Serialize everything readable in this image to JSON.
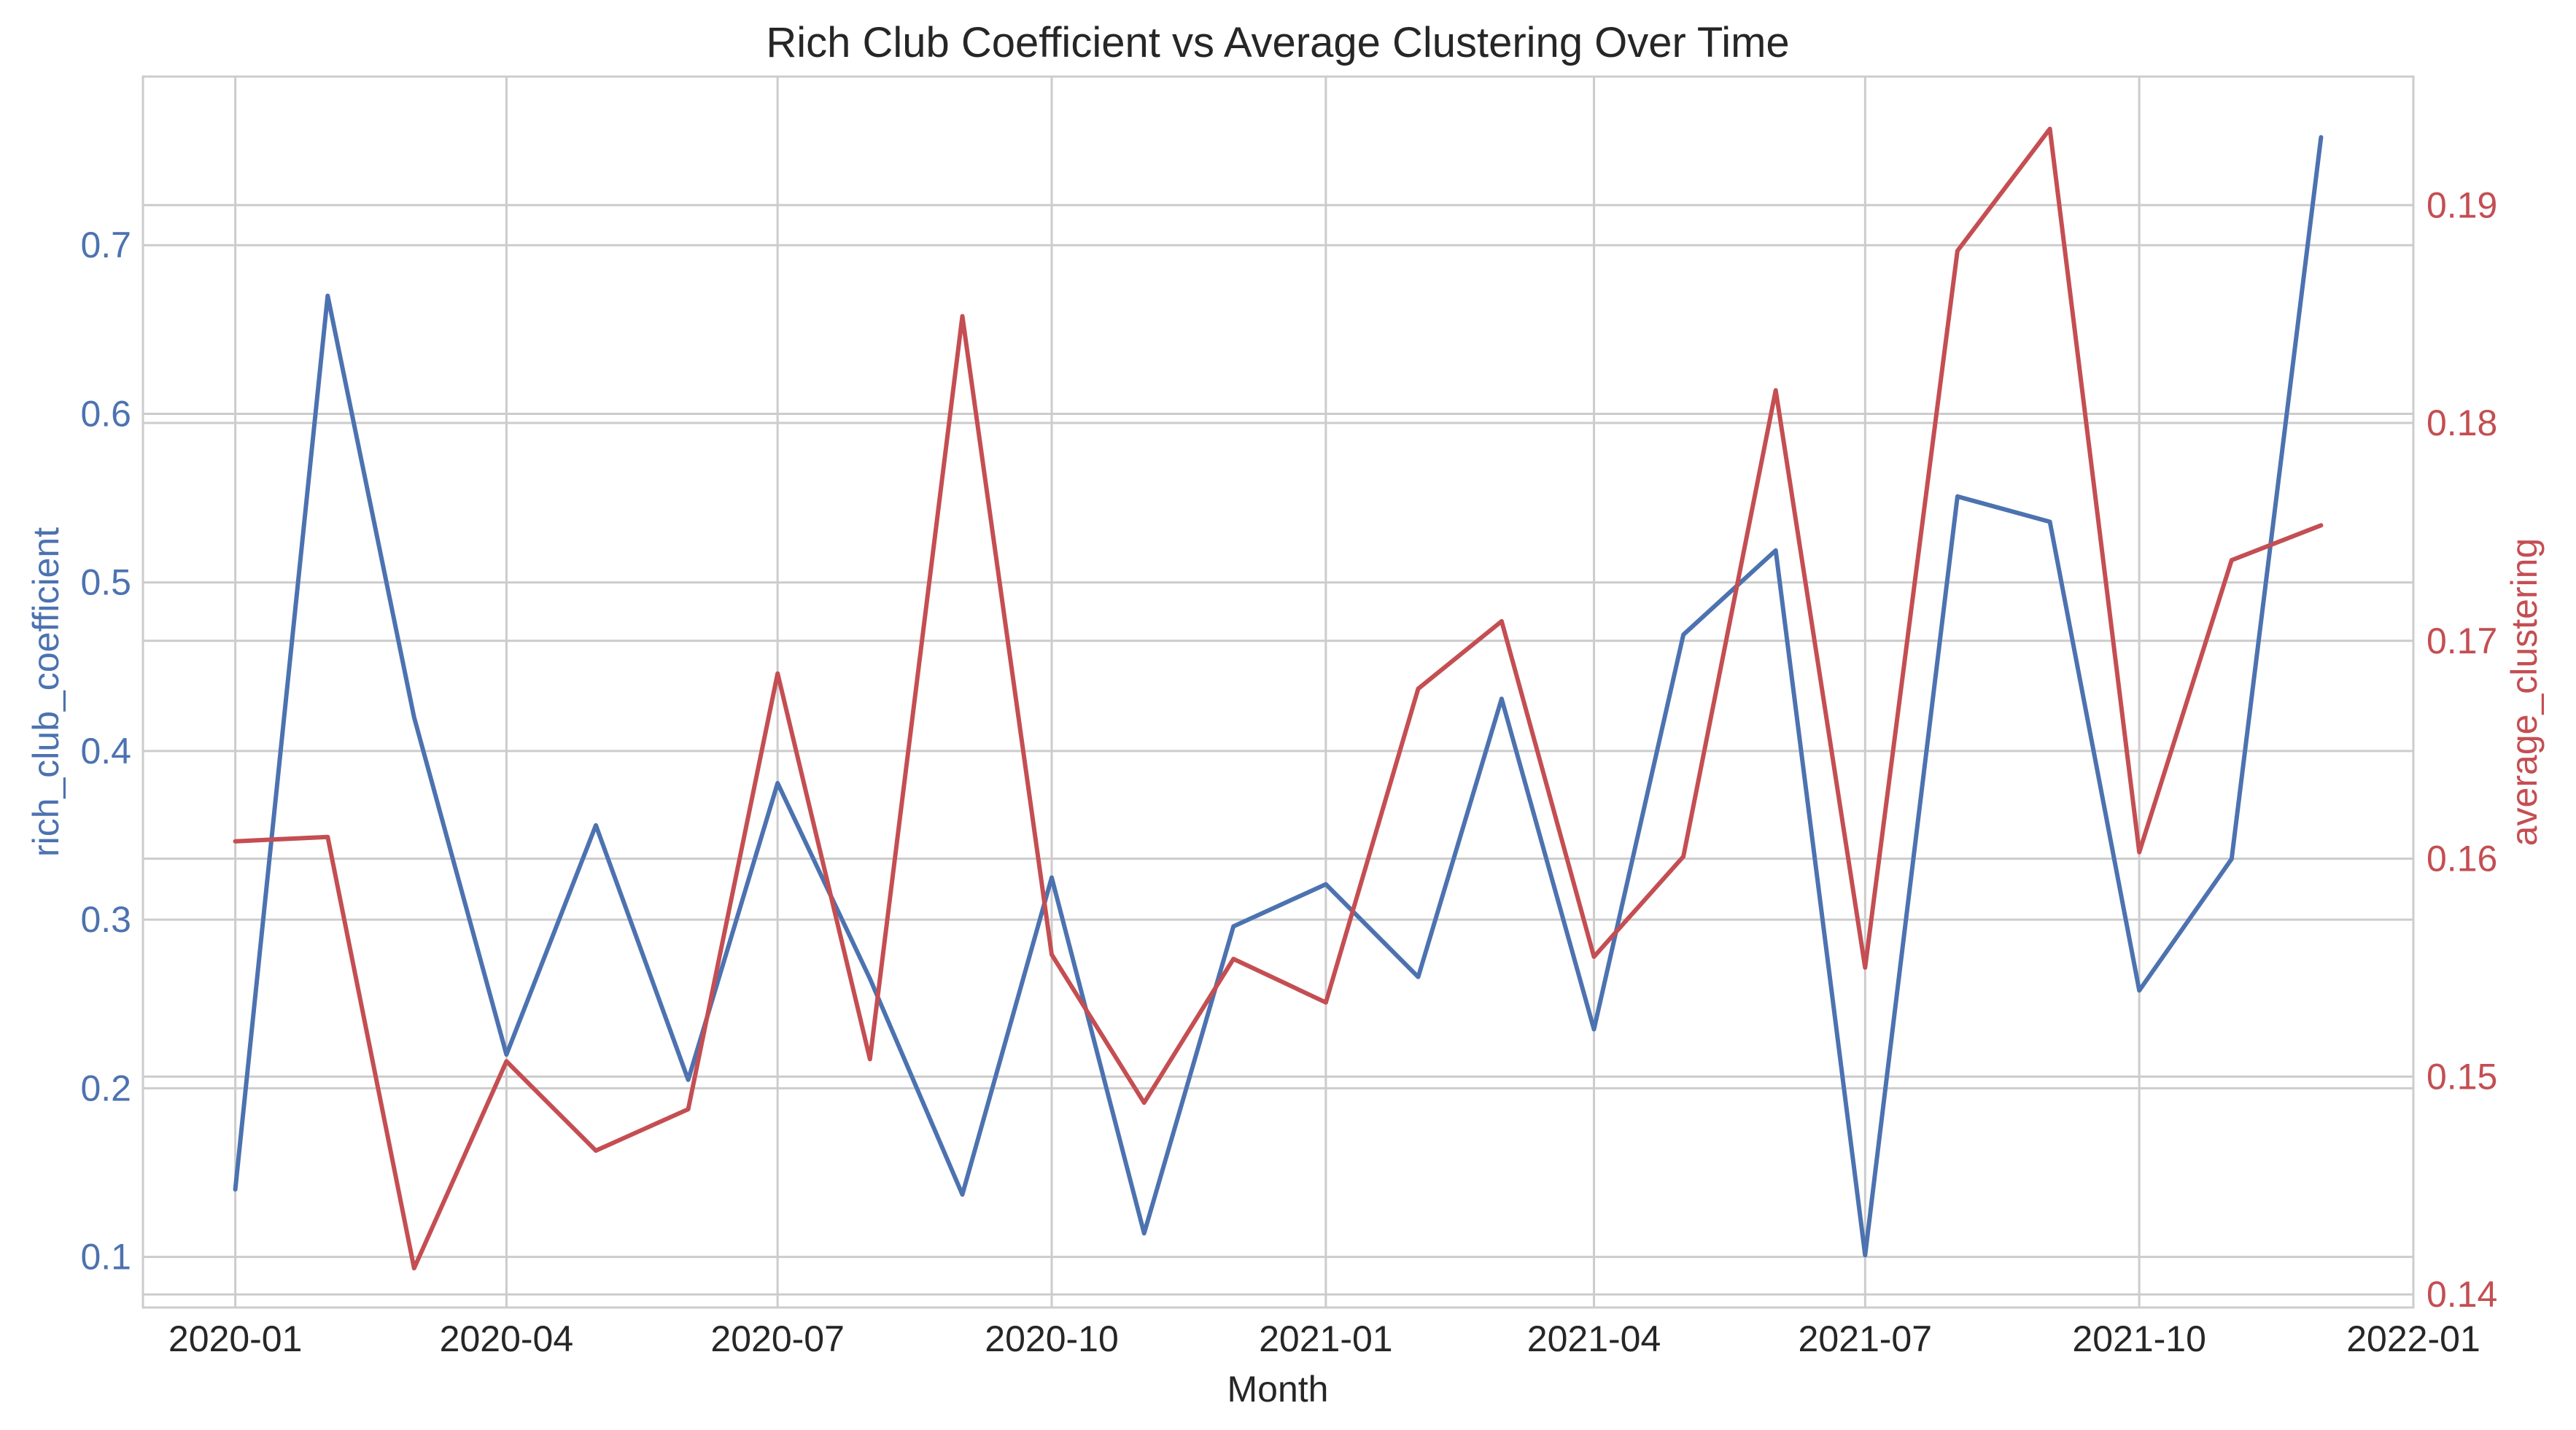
{
  "chart_data": {
    "type": "line",
    "title": "Rich Club Coefficient vs Average Clustering Over Time",
    "xlabel": "Month",
    "x_ticks": [
      "2020-01",
      "2020-04",
      "2020-07",
      "2020-10",
      "2021-01",
      "2021-04",
      "2021-07",
      "2021-10",
      "2022-01"
    ],
    "x": [
      "2020-01",
      "2020-02",
      "2020-03",
      "2020-04",
      "2020-05",
      "2020-06",
      "2020-07",
      "2020-08",
      "2020-09",
      "2020-10",
      "2020-11",
      "2020-12",
      "2021-01",
      "2021-02",
      "2021-03",
      "2021-04",
      "2021-05",
      "2021-06",
      "2021-07",
      "2021-08",
      "2021-09",
      "2021-10",
      "2021-11",
      "2021-12"
    ],
    "xlim": [
      "2019-12-01",
      "2022-01-01"
    ],
    "grid": true,
    "legend": "none",
    "left_axis": {
      "label": "rich_club_coefficient",
      "color": "#4c72b0",
      "ylim": [
        0.07,
        0.8
      ],
      "ticks": [
        "0.1",
        "0.2",
        "0.3",
        "0.4",
        "0.5",
        "0.6",
        "0.7"
      ]
    },
    "right_axis": {
      "label": "average_clustering",
      "color": "#c44e52",
      "ylim": [
        0.1394,
        0.1959
      ],
      "ticks": [
        "0.14",
        "0.15",
        "0.16",
        "0.17",
        "0.18",
        "0.19"
      ]
    },
    "series": [
      {
        "axis": "left",
        "color": "#4c72b0",
        "values": [
          0.14,
          0.67,
          0.42,
          0.22,
          0.356,
          0.205,
          0.381,
          0.265,
          0.137,
          0.325,
          0.114,
          0.296,
          0.321,
          0.266,
          0.431,
          0.235,
          0.469,
          0.519,
          0.101,
          0.551,
          0.536,
          0.258,
          0.336,
          0.764
        ]
      },
      {
        "axis": "right",
        "color": "#c44e52",
        "values": [
          0.1608,
          0.161,
          0.1412,
          0.1507,
          0.1466,
          0.1485,
          0.1685,
          0.1508,
          0.1849,
          0.1556,
          0.1488,
          0.1554,
          0.1534,
          0.1678,
          0.1709,
          0.1555,
          0.1601,
          0.1815,
          0.155,
          0.1879,
          0.1935,
          0.1603,
          0.1737,
          0.1753
        ]
      }
    ]
  }
}
